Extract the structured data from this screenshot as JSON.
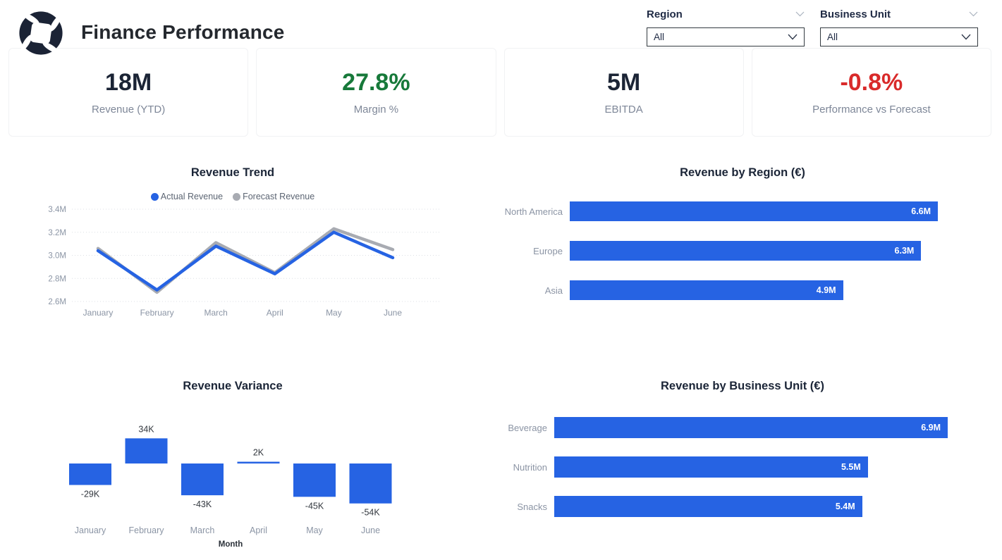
{
  "header": {
    "title": "Finance Performance",
    "slicers": [
      {
        "label": "Region",
        "value": "All"
      },
      {
        "label": "Business Unit",
        "value": "All"
      }
    ]
  },
  "kpis": [
    {
      "value": "18M",
      "label": "Revenue (YTD)",
      "color_class": "navy"
    },
    {
      "value": "27.8%",
      "label": "Margin %",
      "color_class": "green"
    },
    {
      "value": "5M",
      "label": "EBITDA",
      "color_class": "navy"
    },
    {
      "value": "-0.8%",
      "label": "Performance vs Forecast",
      "color_class": "red"
    }
  ],
  "colors": {
    "accent_blue": "#2663e3",
    "forecast_gray": "#a8abb2",
    "positive_green": "#17793a",
    "negative_red": "#d92a2a",
    "axis_gray": "#8b95a5",
    "grid_gray": "#dcdfe4",
    "label_dark": "#33383f",
    "logo_navy": "#1b2335"
  },
  "chart_data": [
    {
      "id": "revenue_trend",
      "type": "line",
      "title": "Revenue Trend",
      "x": [
        "January",
        "February",
        "March",
        "April",
        "May",
        "June"
      ],
      "series": [
        {
          "name": "Actual Revenue",
          "color": "#2663e3",
          "values": [
            3.04,
            2.7,
            3.08,
            2.84,
            3.2,
            2.98
          ]
        },
        {
          "name": "Forecast Revenue",
          "color": "#a8abb2",
          "values": [
            3.06,
            2.68,
            3.11,
            2.85,
            3.23,
            3.05
          ]
        }
      ],
      "unit": "M",
      "ylim": [
        2.6,
        3.4
      ],
      "y_ticks": [
        "3.4M",
        "3.2M",
        "3.0M",
        "2.8M",
        "2.6M"
      ],
      "grid": "dotted",
      "legend_position": "top"
    },
    {
      "id": "revenue_by_region",
      "type": "bar",
      "title": "Revenue by Region (€)",
      "categories": [
        "North America",
        "Europe",
        "Asia"
      ],
      "values": [
        6.6,
        6.3,
        4.9
      ],
      "labels": [
        "6.6M",
        "6.3M",
        "4.9M"
      ],
      "unit": "M",
      "orientation": "horizontal"
    },
    {
      "id": "revenue_variance",
      "type": "column",
      "title": "Revenue Variance",
      "xlabel": "Month",
      "categories": [
        "January",
        "February",
        "March",
        "April",
        "May",
        "June"
      ],
      "values": [
        -29,
        34,
        -43,
        2,
        -45,
        -54
      ],
      "labels": [
        "-29K",
        "34K",
        "-43K",
        "2K",
        "-45K",
        "-54K"
      ],
      "unit": "K"
    },
    {
      "id": "revenue_by_business_unit",
      "type": "bar",
      "title": "Revenue by Business Unit (€)",
      "categories": [
        "Beverage",
        "Nutrition",
        "Snacks"
      ],
      "values": [
        6.9,
        5.5,
        5.4
      ],
      "labels": [
        "6.9M",
        "5.5M",
        "5.4M"
      ],
      "unit": "M",
      "orientation": "horizontal"
    }
  ]
}
